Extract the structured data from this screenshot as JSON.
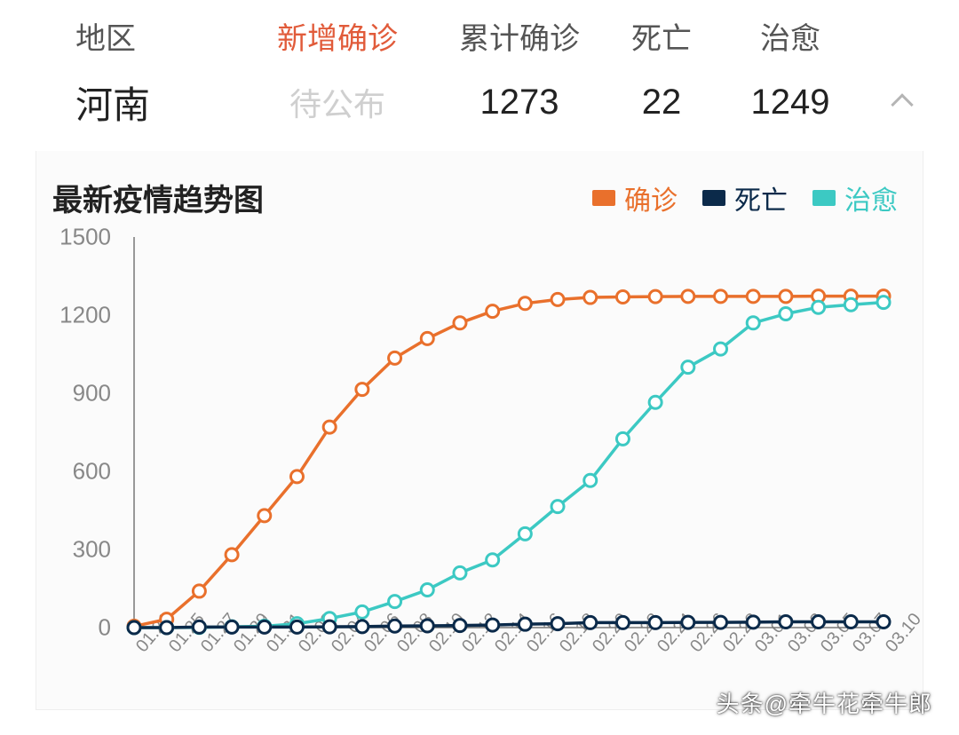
{
  "table": {
    "headers": {
      "region": "地区",
      "new_confirmed": "新增确诊",
      "total_confirmed": "累计确诊",
      "deaths": "死亡",
      "cured": "治愈"
    },
    "row": {
      "region": "河南",
      "new_confirmed": "待公布",
      "total_confirmed": "1273",
      "deaths": "22",
      "cured": "1249"
    },
    "colors": {
      "header_highlight": "#e15b3a",
      "pending_text": "#cfcfcf"
    }
  },
  "chart": {
    "title": "最新疫情趋势图",
    "type": "line",
    "background_color": "#fbfbfb",
    "axis_color": "#777777",
    "label_color": "#888888",
    "title_fontsize": 34,
    "label_fontsize": 26,
    "xlabel_fontsize": 20,
    "line_width": 3.5,
    "marker_radius": 7,
    "marker_fill": "#ffffff",
    "ylim": [
      0,
      1500
    ],
    "ytick_step": 300,
    "yticks": [
      0,
      300,
      600,
      900,
      1200,
      1500
    ],
    "x_categories": [
      "01.21",
      "01.25",
      "01.27",
      "01.29",
      "01.31",
      "02.02",
      "02.04",
      "02.06",
      "02.08",
      "02.10",
      "02.12",
      "02.14",
      "02.16",
      "02.18",
      "02.20",
      "02.22",
      "02.24",
      "02.26",
      "02.28",
      "03.01",
      "03.03",
      "03.05",
      "03.07",
      "03.10"
    ],
    "legend": [
      {
        "key": "confirmed",
        "label": "确诊",
        "color": "#e9702c"
      },
      {
        "key": "deaths",
        "label": "死亡",
        "color": "#0b2a4a"
      },
      {
        "key": "cured",
        "label": "治愈",
        "color": "#3cc9c3"
      }
    ],
    "series": {
      "confirmed": {
        "color": "#e9702c",
        "values": [
          5,
          32,
          140,
          280,
          430,
          580,
          770,
          915,
          1035,
          1110,
          1170,
          1215,
          1245,
          1260,
          1268,
          1270,
          1271,
          1272,
          1272,
          1272,
          1272,
          1273,
          1273,
          1273
        ]
      },
      "deaths": {
        "color": "#0b2a4a",
        "values": [
          0,
          0,
          2,
          2,
          2,
          2,
          3,
          4,
          6,
          7,
          8,
          10,
          13,
          15,
          19,
          19,
          19,
          20,
          20,
          21,
          22,
          22,
          22,
          22
        ]
      },
      "cured": {
        "color": "#3cc9c3",
        "values": [
          0,
          0,
          1,
          3,
          5,
          15,
          35,
          60,
          100,
          145,
          210,
          260,
          360,
          465,
          565,
          725,
          865,
          1000,
          1070,
          1170,
          1205,
          1230,
          1240,
          1249
        ]
      }
    }
  },
  "watermark": "头条@牵牛花牵牛郎"
}
